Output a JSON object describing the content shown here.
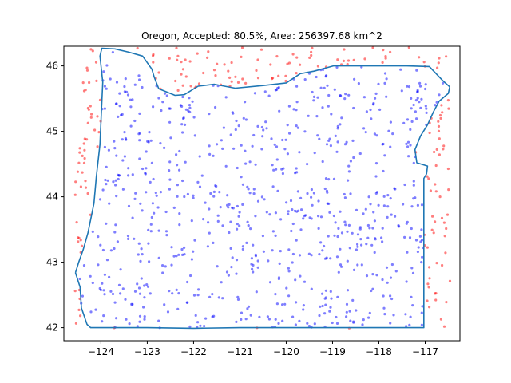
{
  "chart_data": {
    "type": "scatter",
    "title": "Oregon, Accepted: 80.5%, Area: 256397.68 km^2",
    "xlabel": "",
    "ylabel": "",
    "xlim": [
      -124.8,
      -116.25
    ],
    "ylim": [
      41.8,
      46.3
    ],
    "xticks": [
      -124,
      -123,
      -122,
      -121,
      -120,
      -119,
      -118,
      -117
    ],
    "xtick_labels": [
      "−124",
      "−123",
      "−122",
      "−121",
      "−120",
      "−119",
      "−118",
      "−117"
    ],
    "yticks": [
      42,
      43,
      44,
      45,
      46
    ],
    "ytick_labels": [
      "42",
      "43",
      "44",
      "45",
      "46"
    ],
    "grid": false,
    "colors": {
      "accepted": "#0000ff",
      "rejected": "#ff0000",
      "boundary": "#1f77b4"
    },
    "sample_bounds": {
      "lon": [
        -124.57,
        -116.46
      ],
      "lat": [
        41.99,
        46.29
      ]
    },
    "accepted_fraction": 0.805,
    "sample_count": 1000,
    "boundary": [
      [
        -124.55,
        42.84
      ],
      [
        -124.45,
        42.62
      ],
      [
        -124.42,
        42.3
      ],
      [
        -124.3,
        42.05
      ],
      [
        -124.22,
        42.0
      ],
      [
        -123.0,
        42.0
      ],
      [
        -122.0,
        41.99
      ],
      [
        -121.0,
        42.0
      ],
      [
        -120.0,
        42.0
      ],
      [
        -119.0,
        42.0
      ],
      [
        -118.0,
        42.0
      ],
      [
        -117.03,
        42.0
      ],
      [
        -117.03,
        43.5
      ],
      [
        -117.03,
        44.28
      ],
      [
        -116.97,
        44.35
      ],
      [
        -116.95,
        44.47
      ],
      [
        -117.18,
        44.52
      ],
      [
        -117.22,
        44.72
      ],
      [
        -117.1,
        44.93
      ],
      [
        -116.95,
        45.1
      ],
      [
        -116.82,
        45.3
      ],
      [
        -116.7,
        45.46
      ],
      [
        -116.5,
        45.58
      ],
      [
        -116.47,
        45.68
      ],
      [
        -116.63,
        45.78
      ],
      [
        -116.91,
        45.99
      ],
      [
        -117.4,
        46.0
      ],
      [
        -118.0,
        46.0
      ],
      [
        -118.98,
        46.0
      ],
      [
        -119.4,
        45.92
      ],
      [
        -119.7,
        45.88
      ],
      [
        -120.0,
        45.74
      ],
      [
        -120.5,
        45.7
      ],
      [
        -121.1,
        45.66
      ],
      [
        -121.55,
        45.72
      ],
      [
        -121.9,
        45.69
      ],
      [
        -122.2,
        45.56
      ],
      [
        -122.4,
        45.55
      ],
      [
        -122.75,
        45.65
      ],
      [
        -122.85,
        45.83
      ],
      [
        -122.9,
        45.95
      ],
      [
        -123.1,
        46.15
      ],
      [
        -123.4,
        46.21
      ],
      [
        -123.7,
        46.26
      ],
      [
        -123.98,
        46.27
      ],
      [
        -124.02,
        46.15
      ],
      [
        -123.96,
        45.75
      ],
      [
        -123.99,
        45.3
      ],
      [
        -124.02,
        44.8
      ],
      [
        -124.1,
        44.3
      ],
      [
        -124.15,
        43.9
      ],
      [
        -124.28,
        43.45
      ],
      [
        -124.38,
        43.2
      ],
      [
        -124.48,
        43.0
      ],
      [
        -124.55,
        42.84
      ]
    ]
  }
}
